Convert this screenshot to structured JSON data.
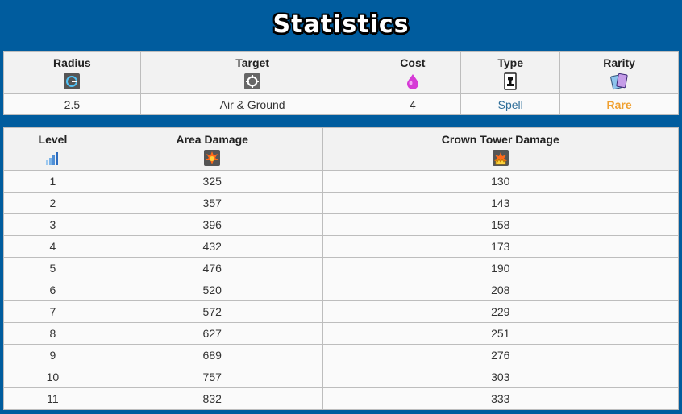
{
  "title": "Statistics",
  "summary": {
    "headers": {
      "radius": "Radius",
      "target": "Target",
      "cost": "Cost",
      "type": "Type",
      "rarity": "Rarity"
    },
    "values": {
      "radius": "2.5",
      "target": "Air & Ground",
      "cost": "4",
      "type": "Spell",
      "rarity": "Rare"
    },
    "icons": {
      "radius": "radius-icon",
      "target": "target-crosshair-icon",
      "cost": "elixir-drop-icon",
      "type": "spell-card-icon",
      "rarity": "rarity-cards-icon"
    }
  },
  "levels": {
    "headers": {
      "level": "Level",
      "area_damage": "Area Damage",
      "crown_tower_damage": "Crown Tower Damage"
    },
    "icons": {
      "level": "level-bars-icon",
      "area_damage": "area-damage-explosion-icon",
      "crown_tower_damage": "crown-tower-explosion-icon"
    },
    "rows": [
      {
        "level": "1",
        "area": "325",
        "tower": "130"
      },
      {
        "level": "2",
        "area": "357",
        "tower": "143"
      },
      {
        "level": "3",
        "area": "396",
        "tower": "158"
      },
      {
        "level": "4",
        "area": "432",
        "tower": "173"
      },
      {
        "level": "5",
        "area": "476",
        "tower": "190"
      },
      {
        "level": "6",
        "area": "520",
        "tower": "208"
      },
      {
        "level": "7",
        "area": "572",
        "tower": "229"
      },
      {
        "level": "8",
        "area": "627",
        "tower": "251"
      },
      {
        "level": "9",
        "area": "689",
        "tower": "276"
      },
      {
        "level": "10",
        "area": "757",
        "tower": "303"
      },
      {
        "level": "11",
        "area": "832",
        "tower": "333"
      }
    ]
  },
  "colors": {
    "background": "#005c9e",
    "type_text": "#2f6e99",
    "rarity_text": "#f0a030"
  }
}
